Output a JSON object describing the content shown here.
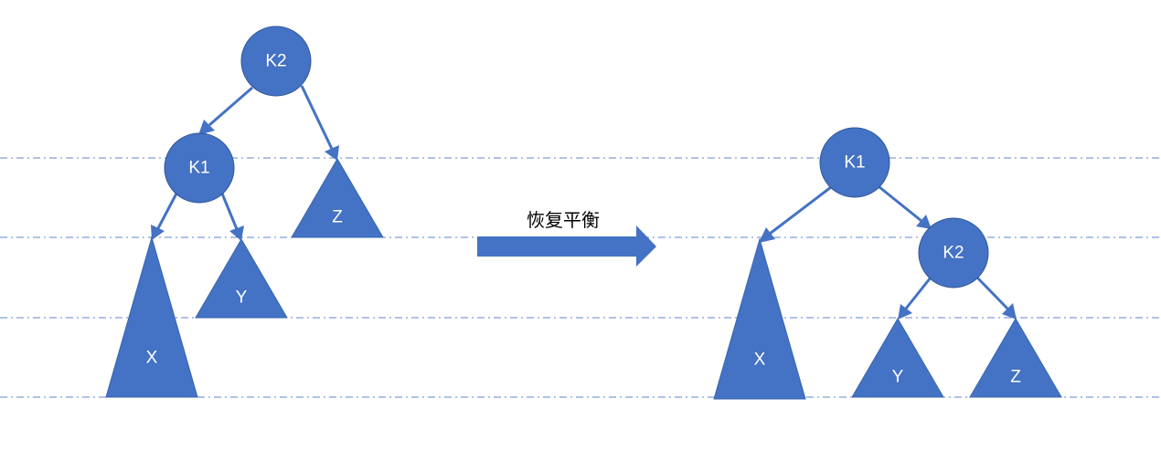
{
  "caption": "恢复平衡",
  "before": {
    "nodes": {
      "k2": "K2",
      "k1": "K1"
    },
    "subtrees": {
      "x": "X",
      "y": "Y",
      "z": "Z"
    }
  },
  "after": {
    "nodes": {
      "k1": "K1",
      "k2": "K2"
    },
    "subtrees": {
      "x": "X",
      "y": "Y",
      "z": "Z"
    }
  },
  "colors": {
    "shape_fill": "#4472c4",
    "label_text": "#ffffff",
    "caption_text": "#000000"
  }
}
